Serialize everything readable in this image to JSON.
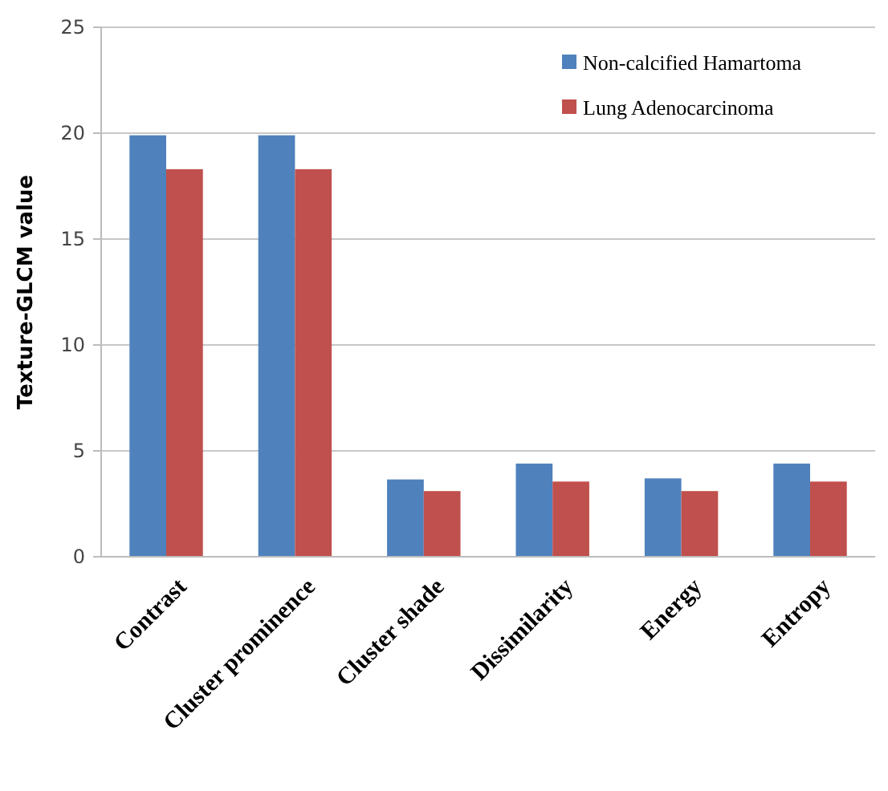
{
  "chart_data": {
    "type": "bar",
    "ylabel": "Texture-GLCM value",
    "categories": [
      "Contrast",
      "Cluster prominence",
      "Cluster shade",
      "Dissimilarity",
      "Energy",
      "Entropy"
    ],
    "series": [
      {
        "name": "Non-calcified Hamartoma",
        "color": "#4f81bd",
        "values": [
          19.9,
          19.9,
          3.65,
          4.4,
          3.7,
          4.4
        ]
      },
      {
        "name": "Lung Adenocarcinoma",
        "color": "#c0504d",
        "values": [
          18.3,
          18.3,
          3.1,
          3.55,
          3.1,
          3.55
        ]
      }
    ],
    "ylim": [
      0,
      25
    ],
    "yticks": [
      0,
      5,
      10,
      15,
      20,
      25
    ],
    "grid": "y",
    "legend": "top right"
  }
}
